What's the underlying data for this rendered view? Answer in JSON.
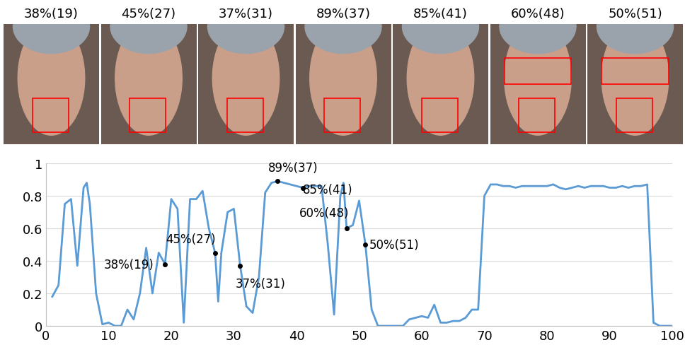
{
  "frames": [
    "38%(19)",
    "45%(27)",
    "37%(31)",
    "89%(37)",
    "85%(41)",
    "60%(48)",
    "50%(51)"
  ],
  "chart_data": {
    "type": "line",
    "color": "#5b9bd5",
    "grid": true,
    "x": [
      1,
      2,
      3,
      4,
      5,
      6,
      6.5,
      7,
      8,
      9,
      10,
      11,
      12,
      13,
      14,
      15,
      16,
      17,
      18,
      19,
      20,
      21,
      22,
      23,
      24,
      25,
      26,
      27,
      27.5,
      28,
      29,
      30,
      31,
      32,
      33,
      34,
      35,
      36,
      37,
      38,
      39,
      40,
      41,
      42,
      43,
      44,
      45,
      46,
      47,
      47.5,
      48,
      49,
      50,
      51,
      52,
      53,
      54,
      55,
      56,
      57,
      58,
      59,
      60,
      61,
      62,
      63,
      64,
      65,
      66,
      67,
      68,
      69,
      70,
      71,
      72,
      73,
      74,
      75,
      76,
      77,
      78,
      79,
      80,
      81,
      82,
      83,
      84,
      85,
      86,
      87,
      88,
      89,
      90,
      91,
      92,
      93,
      94,
      95,
      96,
      97,
      98,
      99,
      100
    ],
    "values": [
      0.18,
      0.25,
      0.75,
      0.78,
      0.37,
      0.85,
      0.88,
      0.75,
      0.2,
      0.01,
      0.02,
      0.0,
      0.0,
      0.1,
      0.04,
      0.2,
      0.48,
      0.2,
      0.45,
      0.38,
      0.78,
      0.72,
      0.02,
      0.78,
      0.78,
      0.83,
      0.6,
      0.45,
      0.15,
      0.45,
      0.7,
      0.72,
      0.37,
      0.12,
      0.08,
      0.3,
      0.82,
      0.88,
      0.89,
      0.88,
      0.87,
      0.86,
      0.85,
      0.86,
      0.86,
      0.86,
      0.5,
      0.07,
      0.8,
      0.88,
      0.6,
      0.62,
      0.77,
      0.5,
      0.1,
      0.0,
      0.0,
      0.0,
      0.0,
      0.0,
      0.04,
      0.05,
      0.06,
      0.05,
      0.13,
      0.02,
      0.02,
      0.03,
      0.03,
      0.05,
      0.1,
      0.1,
      0.8,
      0.87,
      0.87,
      0.86,
      0.86,
      0.85,
      0.86,
      0.86,
      0.86,
      0.86,
      0.86,
      0.87,
      0.85,
      0.84,
      0.85,
      0.86,
      0.85,
      0.86,
      0.86,
      0.86,
      0.85,
      0.85,
      0.86,
      0.85,
      0.86,
      0.86,
      0.87,
      0.02,
      0.0,
      0.0,
      0.0
    ],
    "xlim": [
      0,
      100
    ],
    "xticks": [
      0,
      10,
      20,
      30,
      40,
      50,
      60,
      70,
      80,
      90,
      100
    ],
    "ylim": [
      0,
      1
    ],
    "yticks": [
      0,
      0.2,
      0.4,
      0.6,
      0.8,
      1
    ],
    "annotations": [
      {
        "x": 19,
        "y": 0.38,
        "label": "38%(19)"
      },
      {
        "x": 27,
        "y": 0.45,
        "label": "45%(27)"
      },
      {
        "x": 31,
        "y": 0.37,
        "label": "37%(31)"
      },
      {
        "x": 37,
        "y": 0.89,
        "label": "89%(37)"
      },
      {
        "x": 41,
        "y": 0.85,
        "label": "85%(41)"
      },
      {
        "x": 48,
        "y": 0.6,
        "label": "60%(48)"
      },
      {
        "x": 51,
        "y": 0.5,
        "label": "50%(51)"
      }
    ]
  }
}
